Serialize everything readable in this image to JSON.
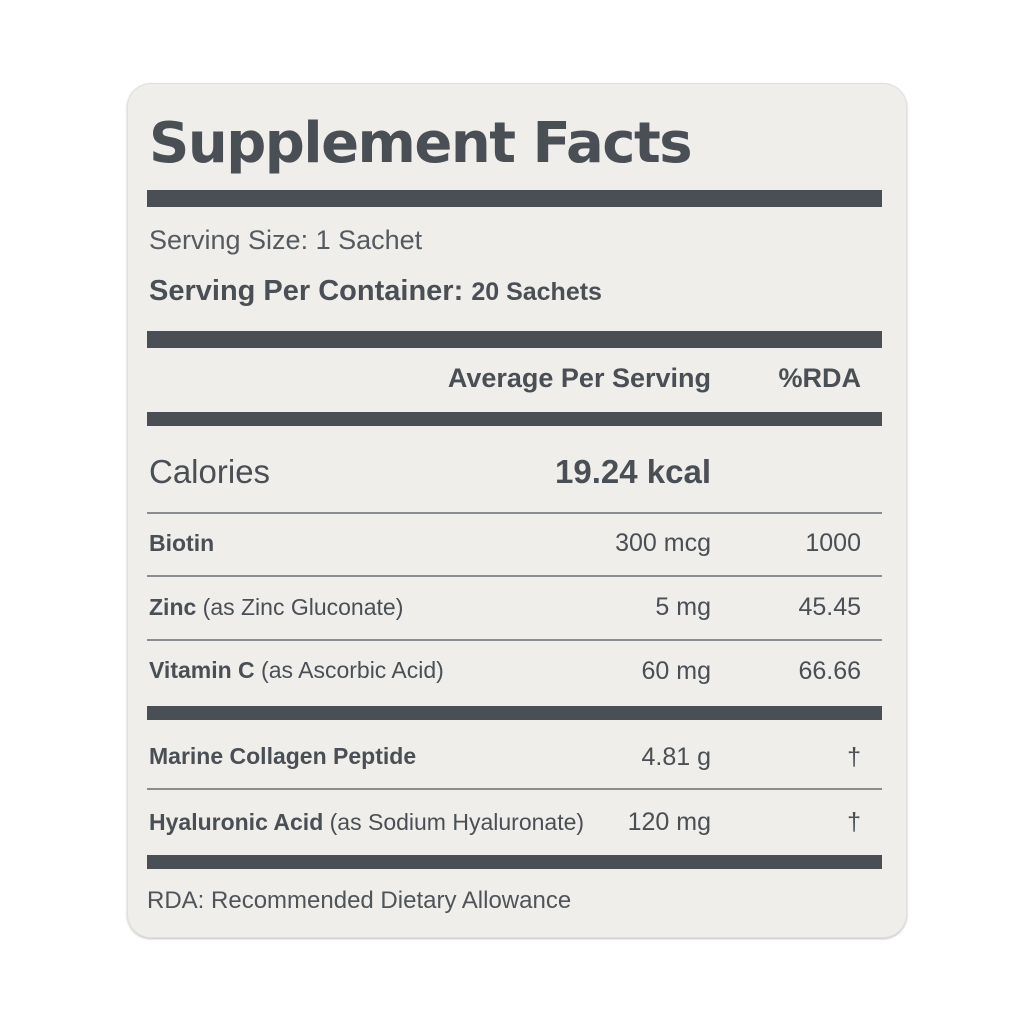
{
  "label": {
    "title": "Supplement Facts",
    "serving_size": "Serving Size: 1 Sachet",
    "servings_per_container_label": "Serving Per Container:",
    "servings_per_container_value": "20 Sachets",
    "column_amount": "Average Per Serving",
    "column_rda": "%RDA",
    "calories_label": "Calories",
    "calories_value": "19.24 kcal",
    "rows": [
      {
        "name": "Biotin",
        "qualifier": "",
        "amount": "300 mcg",
        "rda": "1000"
      },
      {
        "name": "Zinc",
        "qualifier": " (as Zinc Gluconate)",
        "amount": "5 mg",
        "rda": "45.45"
      },
      {
        "name": "Vitamin C",
        "qualifier": " (as Ascorbic Acid)",
        "amount": "60 mg",
        "rda": "66.66"
      },
      {
        "name": "Marine Collagen Peptide",
        "qualifier": "",
        "amount": "4.81 g",
        "rda": "†"
      },
      {
        "name": "Hyaluronic Acid",
        "qualifier": " (as Sodium Hyaluronate)",
        "amount": "120 mg",
        "rda": "†"
      }
    ],
    "footnote": "RDA: Recommended Dietary Allowance"
  },
  "colors": {
    "text": "#4a4f55",
    "card": "#efeeea",
    "bars": "#4a4f55"
  }
}
